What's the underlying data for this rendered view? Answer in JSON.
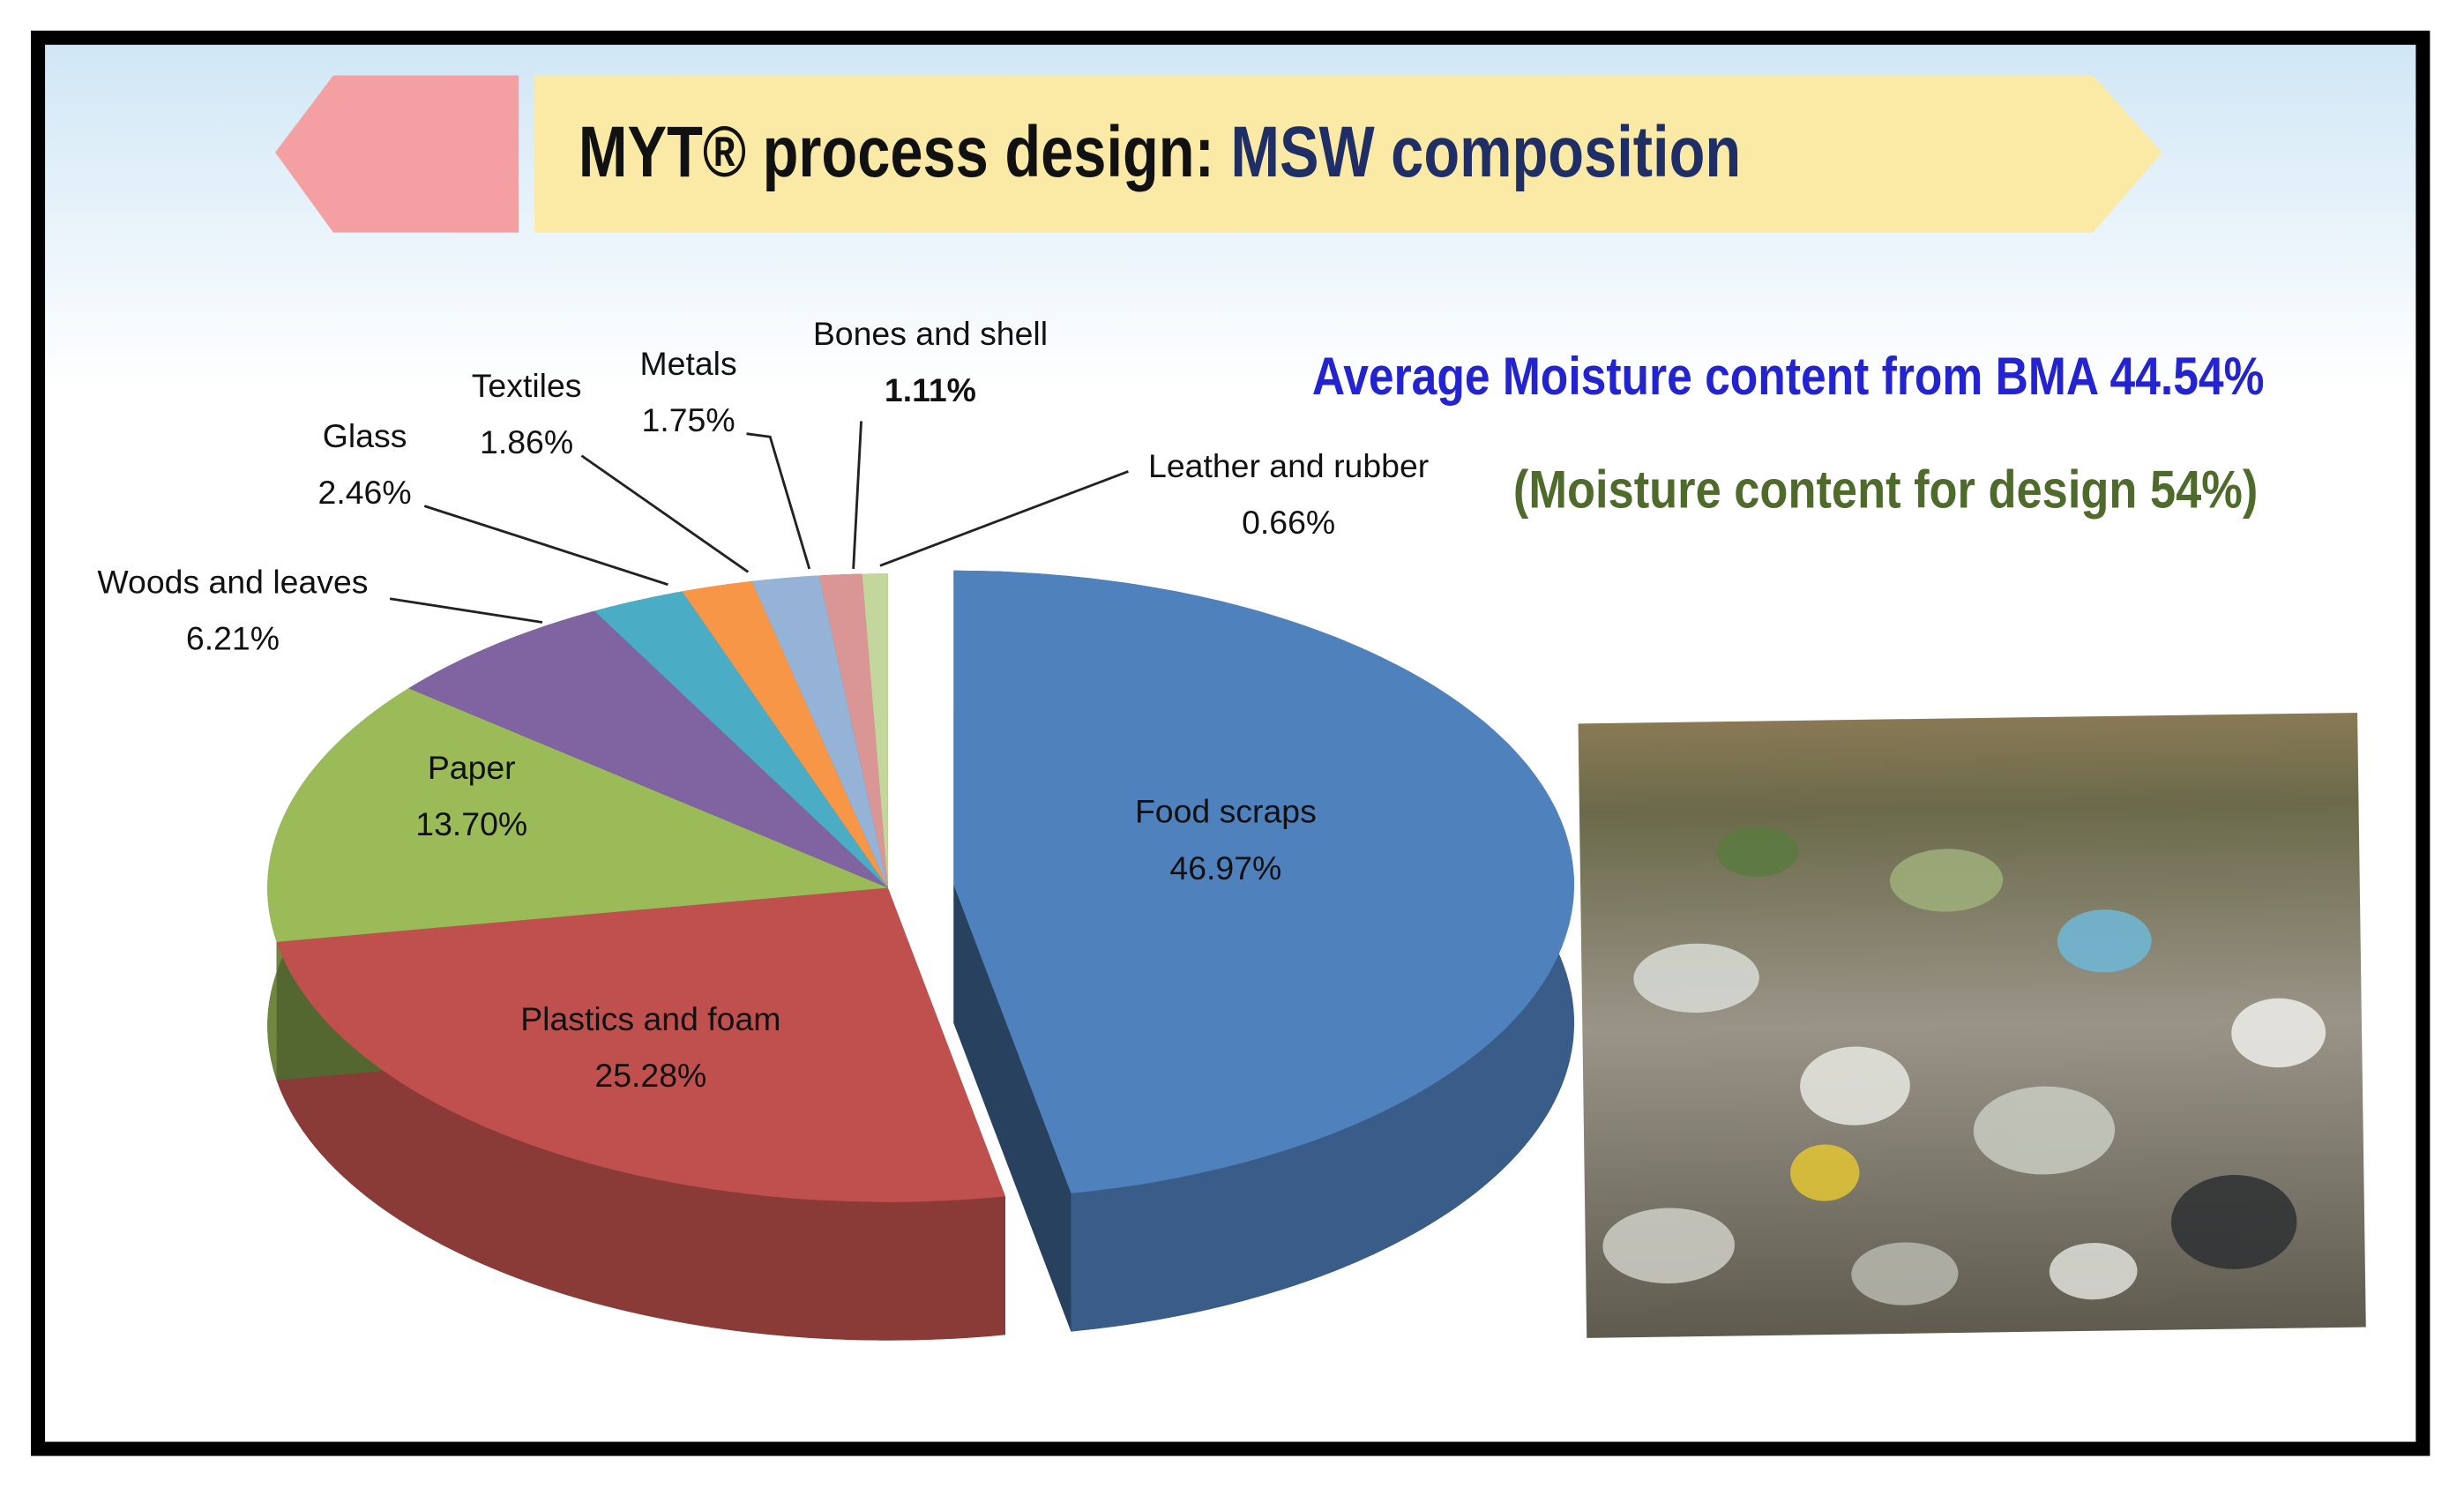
{
  "chart_data": {
    "type": "pie",
    "title": "MYT® process design:",
    "title_highlight": "MSW composition",
    "annotations": [
      "Average Moisture content from BMA 44.54%",
      "(Moisture content for design  54%)"
    ],
    "categories": [
      "Food scraps",
      "Plastics and foam",
      "Paper",
      "Woods and leaves",
      "Glass",
      "Textiles",
      "Metals",
      "Bones and shell",
      "Leather and rubber"
    ],
    "values": [
      46.97,
      25.28,
      13.7,
      6.21,
      2.46,
      1.86,
      1.75,
      1.11,
      0.66
    ],
    "value_labels": [
      "46.97%",
      "25.28%",
      "13.70%",
      "6.21%",
      "2.46%",
      "1.86%",
      "1.75%",
      "1.11%",
      "0.66%"
    ],
    "colors": [
      "#4f81bd",
      "#c0504d",
      "#9bbb59",
      "#8064a2",
      "#4bacc6",
      "#f79646",
      "#95b3d7",
      "#d99694",
      "#c3d69b"
    ],
    "exploded": [
      0
    ]
  }
}
